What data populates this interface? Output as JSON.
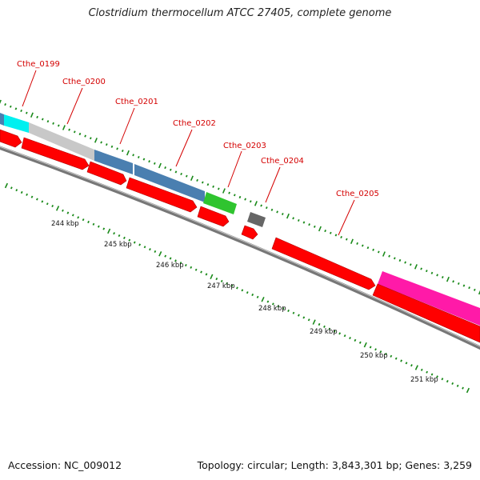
{
  "title": "Clostridium thermocellum ATCC 27405, complete genome",
  "accession": "Accession: NC_009012",
  "stats": "Topology: circular; Length: 3,843,301 bp; Genes: 3,259",
  "gene_labels": [
    "Cthe_0199",
    "Cthe_0200",
    "Cthe_0201",
    "Cthe_0202",
    "Cthe_0203",
    "Cthe_0204",
    "Cthe_0205"
  ],
  "kbp_labels": [
    "244 kbp",
    "245 kbp",
    "246 kbp",
    "247 kbp",
    "248 kbp",
    "249 kbp",
    "250 kbp",
    "251 kbp"
  ],
  "colors": {
    "cds": "#ff0000",
    "backbone": "#7a7a7a",
    "label": "#d40000",
    "tick": "#1a8a1a",
    "cyan": "#00f0f0",
    "gray": "#c8c8c8",
    "steelblue": "#4a7fb0",
    "green": "#2fc42f",
    "darkgray": "#666666",
    "magenta": "#ff1aa8"
  }
}
